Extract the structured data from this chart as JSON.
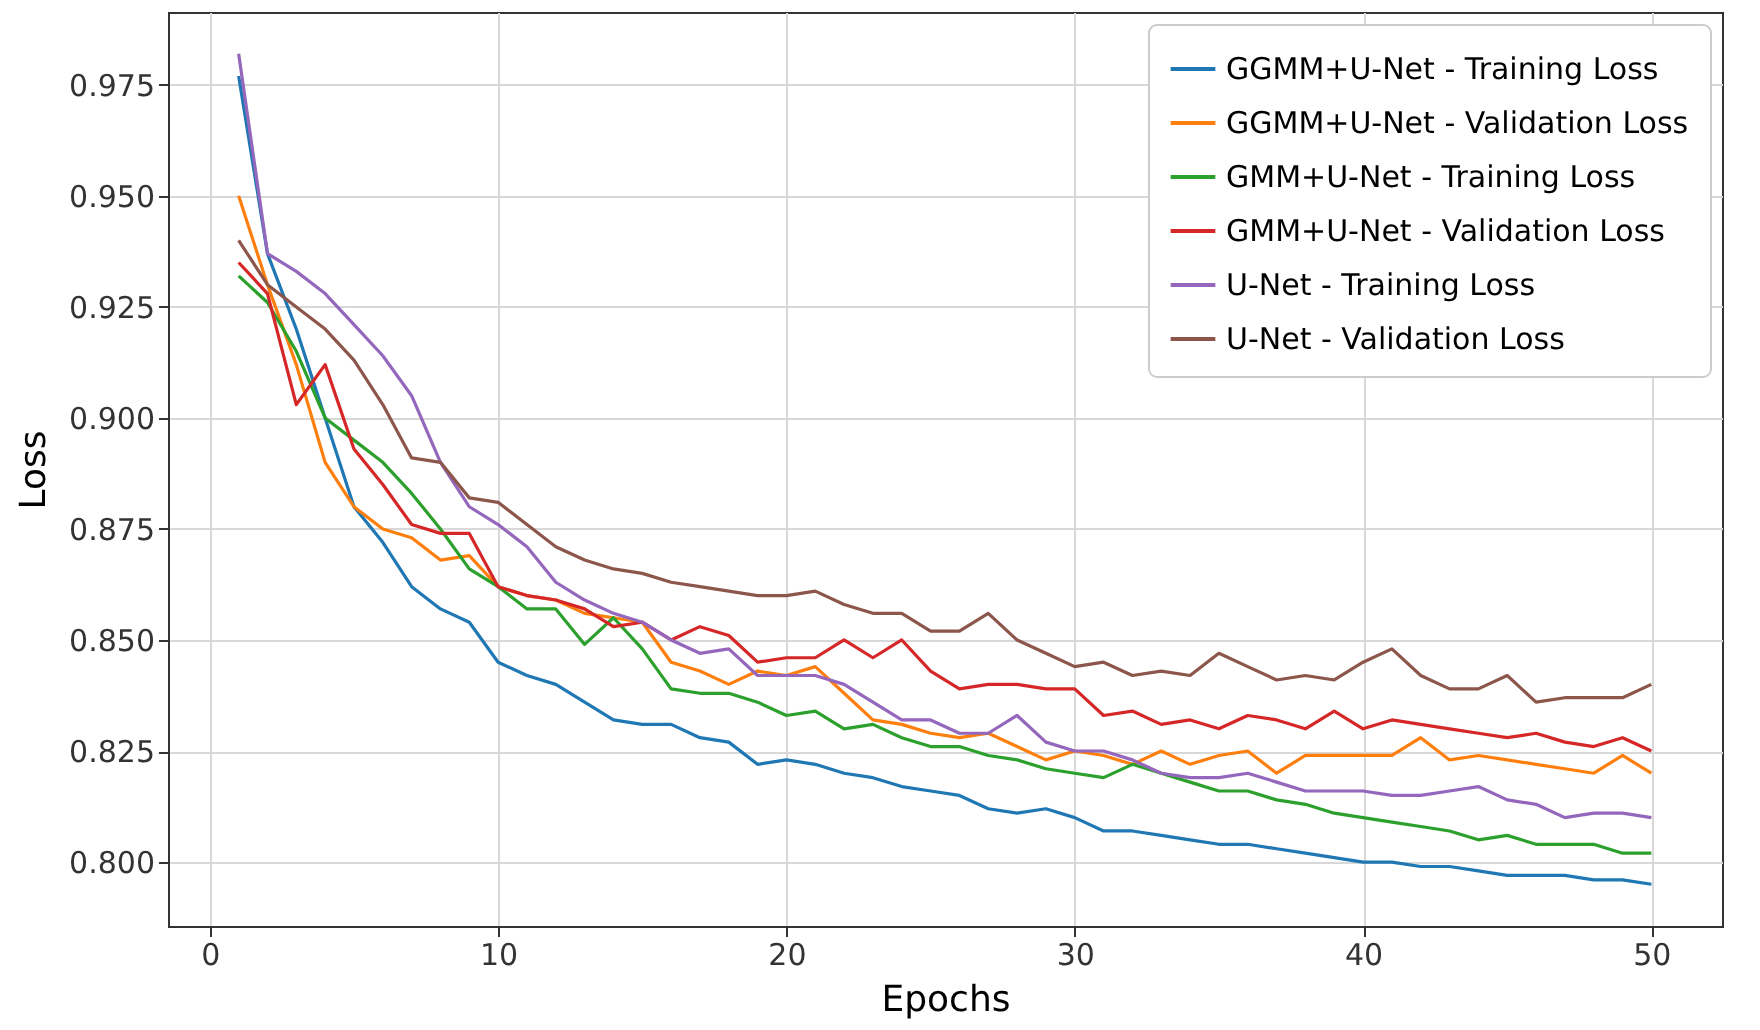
{
  "chart_data": {
    "type": "line",
    "xlabel": "Epochs",
    "ylabel": "Loss",
    "xlim": [
      -1.45,
      52.45
    ],
    "ylim": [
      0.7856,
      0.9914
    ],
    "xticks": [
      0,
      10,
      20,
      30,
      40,
      50
    ],
    "yticks": [
      {
        "value": 0.8,
        "label": "0.800"
      },
      {
        "value": 0.825,
        "label": "0.825"
      },
      {
        "value": 0.85,
        "label": "0.850"
      },
      {
        "value": 0.875,
        "label": "0.875"
      },
      {
        "value": 0.9,
        "label": "0.900"
      },
      {
        "value": 0.925,
        "label": "0.925"
      },
      {
        "value": 0.95,
        "label": "0.950"
      },
      {
        "value": 0.975,
        "label": "0.975"
      }
    ],
    "grid": true,
    "legend": "top right",
    "x": [
      1,
      2,
      3,
      4,
      5,
      6,
      7,
      8,
      9,
      10,
      11,
      12,
      13,
      14,
      15,
      16,
      17,
      18,
      19,
      20,
      21,
      22,
      23,
      24,
      25,
      26,
      27,
      28,
      29,
      30,
      31,
      32,
      33,
      34,
      35,
      36,
      37,
      38,
      39,
      40,
      41,
      42,
      43,
      44,
      45,
      46,
      47,
      48,
      49,
      50
    ],
    "series": [
      {
        "name": "GGMM+U-Net - Training Loss",
        "color": "#1f77b4",
        "values": [
          0.977,
          0.937,
          0.92,
          0.9,
          0.88,
          0.872,
          0.862,
          0.857,
          0.854,
          0.845,
          0.842,
          0.84,
          0.836,
          0.832,
          0.831,
          0.831,
          0.828,
          0.827,
          0.822,
          0.823,
          0.822,
          0.82,
          0.819,
          0.817,
          0.816,
          0.815,
          0.812,
          0.811,
          0.812,
          0.81,
          0.807,
          0.807,
          0.806,
          0.805,
          0.804,
          0.804,
          0.803,
          0.802,
          0.801,
          0.8,
          0.8,
          0.799,
          0.799,
          0.798,
          0.797,
          0.797,
          0.797,
          0.796,
          0.796,
          0.795
        ]
      },
      {
        "name": "GGMM+U-Net - Validation Loss",
        "color": "#ff7f0e",
        "values": [
          0.95,
          0.93,
          0.912,
          0.89,
          0.88,
          0.875,
          0.873,
          0.868,
          0.869,
          0.862,
          0.86,
          0.859,
          0.856,
          0.855,
          0.854,
          0.845,
          0.843,
          0.84,
          0.843,
          0.842,
          0.844,
          0.838,
          0.832,
          0.831,
          0.829,
          0.828,
          0.829,
          0.826,
          0.823,
          0.825,
          0.824,
          0.822,
          0.825,
          0.822,
          0.824,
          0.825,
          0.82,
          0.824,
          0.824,
          0.824,
          0.824,
          0.828,
          0.823,
          0.824,
          0.823,
          0.822,
          0.821,
          0.82,
          0.824,
          0.82
        ]
      },
      {
        "name": "GMM+U-Net - Training Loss",
        "color": "#2ca02c",
        "values": [
          0.932,
          0.926,
          0.915,
          0.9,
          0.895,
          0.89,
          0.883,
          0.875,
          0.866,
          0.862,
          0.857,
          0.857,
          0.849,
          0.855,
          0.848,
          0.839,
          0.838,
          0.838,
          0.836,
          0.833,
          0.834,
          0.83,
          0.831,
          0.828,
          0.826,
          0.826,
          0.824,
          0.823,
          0.821,
          0.82,
          0.819,
          0.822,
          0.82,
          0.818,
          0.816,
          0.816,
          0.814,
          0.813,
          0.811,
          0.81,
          0.809,
          0.808,
          0.807,
          0.805,
          0.806,
          0.804,
          0.804,
          0.804,
          0.802,
          0.802
        ]
      },
      {
        "name": "GMM+U-Net - Validation Loss",
        "color": "#d62728",
        "values": [
          0.935,
          0.928,
          0.903,
          0.912,
          0.893,
          0.885,
          0.876,
          0.874,
          0.874,
          0.862,
          0.86,
          0.859,
          0.857,
          0.853,
          0.854,
          0.85,
          0.853,
          0.851,
          0.845,
          0.846,
          0.846,
          0.85,
          0.846,
          0.85,
          0.843,
          0.839,
          0.84,
          0.84,
          0.839,
          0.839,
          0.833,
          0.834,
          0.831,
          0.832,
          0.83,
          0.833,
          0.832,
          0.83,
          0.834,
          0.83,
          0.832,
          0.831,
          0.83,
          0.829,
          0.828,
          0.829,
          0.827,
          0.826,
          0.828,
          0.825
        ]
      },
      {
        "name": "U-Net - Training Loss",
        "color": "#9467bd",
        "values": [
          0.982,
          0.937,
          0.933,
          0.928,
          0.921,
          0.914,
          0.905,
          0.89,
          0.88,
          0.876,
          0.871,
          0.863,
          0.859,
          0.856,
          0.854,
          0.85,
          0.847,
          0.848,
          0.842,
          0.842,
          0.842,
          0.84,
          0.836,
          0.832,
          0.832,
          0.829,
          0.829,
          0.833,
          0.827,
          0.825,
          0.825,
          0.823,
          0.82,
          0.819,
          0.819,
          0.82,
          0.818,
          0.816,
          0.816,
          0.816,
          0.815,
          0.815,
          0.816,
          0.817,
          0.814,
          0.813,
          0.81,
          0.811,
          0.811,
          0.81
        ]
      },
      {
        "name": "U-Net - Validation Loss",
        "color": "#8c564b",
        "values": [
          0.94,
          0.93,
          0.925,
          0.92,
          0.913,
          0.903,
          0.891,
          0.89,
          0.882,
          0.881,
          0.876,
          0.871,
          0.868,
          0.866,
          0.865,
          0.863,
          0.862,
          0.861,
          0.86,
          0.86,
          0.861,
          0.858,
          0.856,
          0.856,
          0.852,
          0.852,
          0.856,
          0.85,
          0.847,
          0.844,
          0.845,
          0.842,
          0.843,
          0.842,
          0.847,
          0.844,
          0.841,
          0.842,
          0.841,
          0.845,
          0.848,
          0.842,
          0.839,
          0.839,
          0.842,
          0.836,
          0.837,
          0.837,
          0.837,
          0.84
        ]
      }
    ]
  }
}
